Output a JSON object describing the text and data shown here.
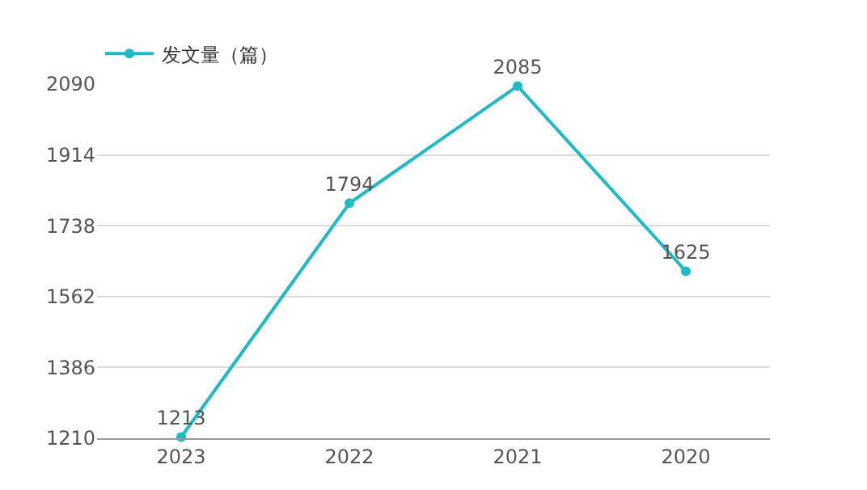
{
  "chart_data": {
    "type": "line",
    "categories": [
      "2023",
      "2022",
      "2021",
      "2020"
    ],
    "series": [
      {
        "name": "发文量（篇）",
        "color": "#1fbac6",
        "values": [
          1213,
          1794,
          2085,
          1625
        ]
      }
    ],
    "ylim": [
      1210,
      2090
    ],
    "yticks": [
      1210,
      1386,
      1562,
      1738,
      1914,
      2090
    ],
    "grid": "y",
    "legend": "top left",
    "marker": "circle",
    "data_labels": true
  }
}
